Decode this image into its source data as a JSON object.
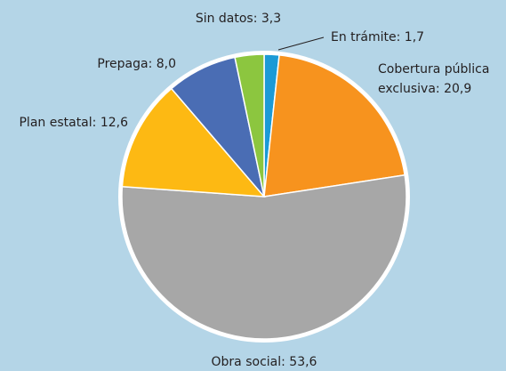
{
  "chart_data": {
    "type": "pie",
    "values": [
      1.7,
      20.9,
      53.6,
      12.6,
      8.0,
      3.3
    ],
    "value_labels": [
      "En trámite: 1,7",
      "Cobertura pública exclusiva: 20,9",
      "Obra social: 53,6",
      "Plan estatal: 12,6",
      "Prepaga: 8,0",
      "Sin datos: 3,3"
    ],
    "colors": [
      "#1b9ad6",
      "#f7931e",
      "#a7a7a7",
      "#fdb913",
      "#4a6db4",
      "#8cc63f"
    ]
  }
}
